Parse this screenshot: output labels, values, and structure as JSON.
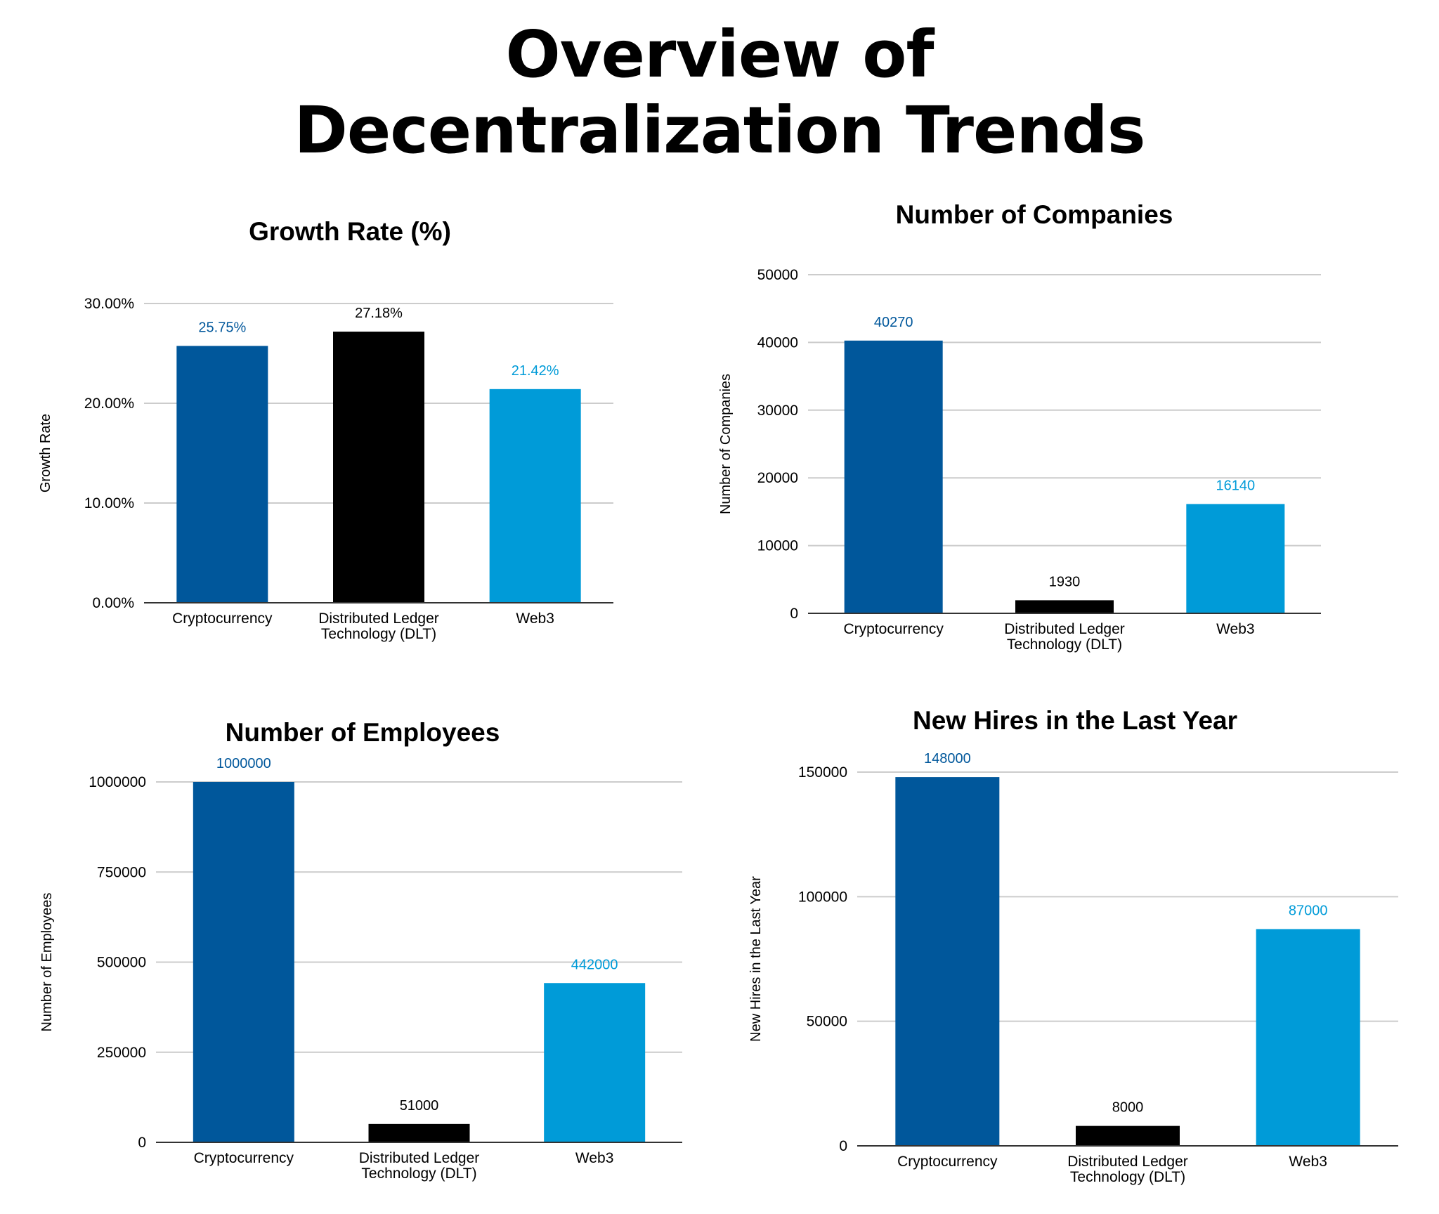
{
  "page": {
    "title_line1": "Overview of",
    "title_line2": "Decentralization Trends"
  },
  "colors": {
    "Cryptocurrency": "#00579b",
    "Distributed Ledger Technology (DLT)": "#000000",
    "Web3": "#009bd8",
    "grid": "#cccccc",
    "axis": "#333333"
  },
  "chart_data": [
    {
      "type": "bar",
      "title": "Growth Rate (%)",
      "ylabel": "Growth Rate",
      "xlabel": "",
      "categories": [
        [
          "Cryptocurrency"
        ],
        [
          "Distributed Ledger",
          "Technology (DLT)"
        ],
        [
          "Web3"
        ]
      ],
      "values": [
        25.75,
        27.18,
        21.42
      ],
      "value_labels": [
        "25.75%",
        "27.18%",
        "21.42%"
      ],
      "ylim": [
        0,
        30
      ],
      "yticks": [
        0,
        10,
        20,
        30
      ],
      "ytick_labels": [
        "0.00%",
        "10.00%",
        "20.00%",
        "30.00%"
      ],
      "grid": true,
      "legend": "none"
    },
    {
      "type": "bar",
      "title": "Number of Companies",
      "ylabel": "Number of Companies",
      "xlabel": "",
      "categories": [
        [
          "Cryptocurrency"
        ],
        [
          "Distributed Ledger",
          "Technology (DLT)"
        ],
        [
          "Web3"
        ]
      ],
      "values": [
        40270,
        1930,
        16140
      ],
      "value_labels": [
        "40270",
        "1930",
        "16140"
      ],
      "ylim": [
        0,
        50000
      ],
      "yticks": [
        0,
        10000,
        20000,
        30000,
        40000,
        50000
      ],
      "ytick_labels": [
        "0",
        "10000",
        "20000",
        "30000",
        "40000",
        "50000"
      ],
      "grid": true,
      "legend": "none"
    },
    {
      "type": "bar",
      "title": "Number of Employees",
      "ylabel": "Number of Employees",
      "xlabel": "",
      "categories": [
        [
          "Cryptocurrency"
        ],
        [
          "Distributed Ledger",
          "Technology (DLT)"
        ],
        [
          "Web3"
        ]
      ],
      "values": [
        1000000,
        51000,
        442000
      ],
      "value_labels": [
        "1000000",
        "51000",
        "442000"
      ],
      "ylim": [
        0,
        1000000
      ],
      "yticks": [
        0,
        250000,
        500000,
        750000,
        1000000
      ],
      "ytick_labels": [
        "0",
        "250000",
        "500000",
        "750000",
        "1000000"
      ],
      "grid": true,
      "legend": "none"
    },
    {
      "type": "bar",
      "title": "New Hires in the Last Year",
      "ylabel": "New Hires in the Last Year",
      "xlabel": "",
      "categories": [
        [
          "Cryptocurrency"
        ],
        [
          "Distributed Ledger",
          "Technology (DLT)"
        ],
        [
          "Web3"
        ]
      ],
      "values": [
        148000,
        8000,
        87000
      ],
      "value_labels": [
        "148000",
        "8000",
        "87000"
      ],
      "ylim": [
        0,
        150000
      ],
      "yticks": [
        0,
        50000,
        100000,
        150000
      ],
      "ytick_labels": [
        "0",
        "50000",
        "100000",
        "150000"
      ],
      "grid": true,
      "legend": "none"
    }
  ]
}
